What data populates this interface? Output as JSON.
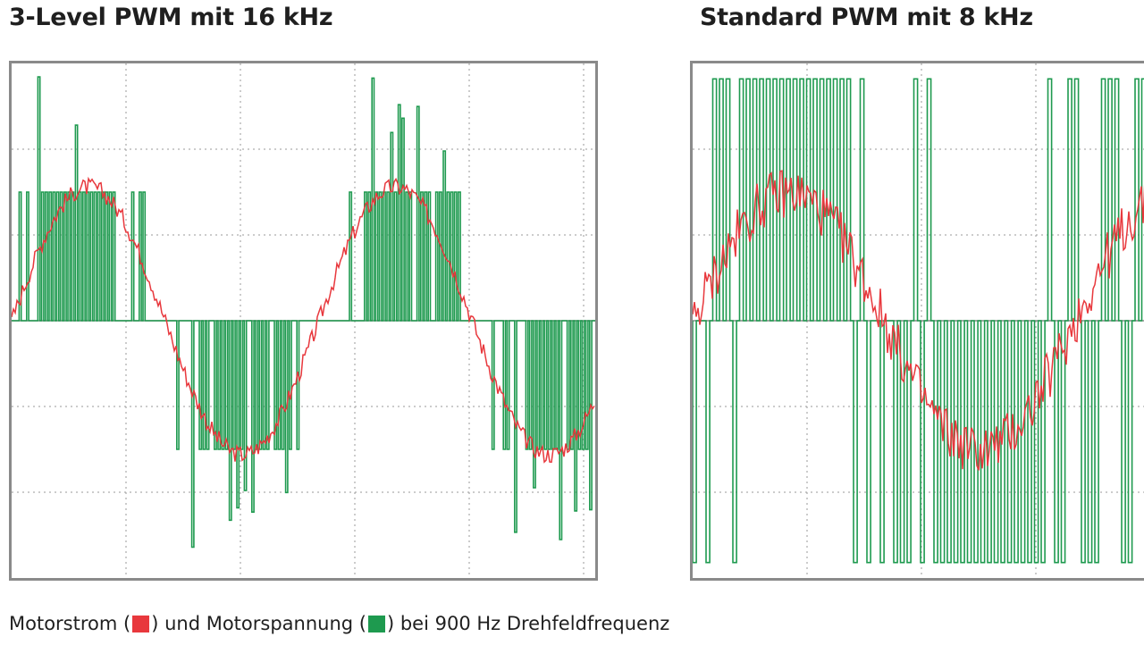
{
  "colors": {
    "current": "#e8383d",
    "voltage": "#1e9a4f",
    "frame": "#8a8a8a",
    "grid": "#9a9a9a"
  },
  "chart_data": [
    {
      "type": "line",
      "title": "3-Level PWM mit 16 kHz",
      "grid": true,
      "series": [
        {
          "name": "Motorstrom",
          "color": "#e8383d",
          "waveform": "sine",
          "cycles": 1.9,
          "amplitude": 0.52,
          "noise": "light"
        },
        {
          "name": "Motorspannung",
          "color": "#1e9a4f",
          "waveform": "3-level PWM",
          "levels": [
            -1,
            0,
            1
          ],
          "spikes": true
        }
      ]
    },
    {
      "type": "line",
      "title": "Standard PWM mit 8 kHz",
      "grid": true,
      "series": [
        {
          "name": "Motorstrom",
          "color": "#e8383d",
          "waveform": "sine",
          "cycles": 1.2,
          "amplitude": 0.5,
          "noise": "strong"
        },
        {
          "name": "Motorspannung",
          "color": "#1e9a4f",
          "waveform": "2-level PWM",
          "levels": [
            -1,
            0,
            1
          ],
          "spikes": false
        }
      ]
    }
  ],
  "caption": {
    "part1": "Motorstrom (",
    "part2": ") und Motorspannung (",
    "part3": ") bei 900 Hz Drehfeldfrequenz"
  }
}
